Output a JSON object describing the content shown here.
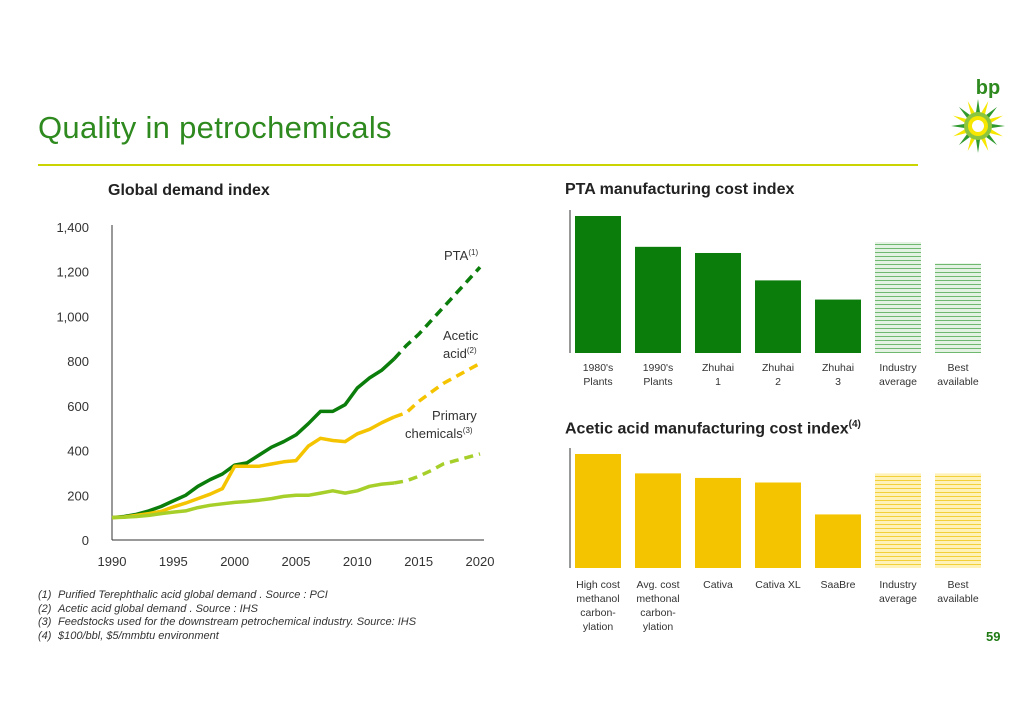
{
  "page": {
    "title": "Quality in petrochemicals",
    "page_number": "59",
    "logo_text": "bp"
  },
  "colors": {
    "green": "#0b7d0b",
    "yellow": "#f5c400",
    "light_green": "#7dbf7d",
    "yellow_green": "#a6cf2a",
    "title_green": "#2e8a1f",
    "rule": "#c9d400"
  },
  "chart_data": [
    {
      "type": "line",
      "title": "Global demand index",
      "x": [
        1990,
        1991,
        1992,
        1993,
        1994,
        1995,
        1996,
        1997,
        1998,
        1999,
        2000,
        2001,
        2002,
        2003,
        2004,
        2005,
        2006,
        2007,
        2008,
        2009,
        2010,
        2011,
        2012,
        2013,
        2014,
        2015,
        2016,
        2017,
        2018,
        2019,
        2020
      ],
      "actual_until": 2013,
      "ylim": [
        0,
        1400
      ],
      "yticks": [
        "0",
        "200",
        "400",
        "600",
        "800",
        "1,000",
        "1,200",
        "1,400"
      ],
      "xticks": [
        "1990",
        "1995",
        "2000",
        "2005",
        "2010",
        "2015",
        "2020"
      ],
      "series": [
        {
          "name": "PTA",
          "label": "PTA",
          "footnote": "(1)",
          "color": "#0b7d0b",
          "values": [
            100,
            105,
            115,
            130,
            150,
            175,
            200,
            240,
            270,
            295,
            335,
            345,
            380,
            415,
            440,
            470,
            520,
            575,
            575,
            605,
            680,
            725,
            760,
            810,
            870,
            920,
            980,
            1040,
            1100,
            1160,
            1220
          ]
        },
        {
          "name": "Acetic acid",
          "label": "Acetic",
          "label2": "acid",
          "footnote": "(2)",
          "color": "#f5c400",
          "values": [
            100,
            103,
            110,
            118,
            128,
            148,
            165,
            185,
            205,
            230,
            330,
            330,
            330,
            340,
            350,
            355,
            420,
            455,
            445,
            440,
            475,
            495,
            525,
            550,
            570,
            620,
            660,
            700,
            730,
            760,
            790
          ]
        },
        {
          "name": "Primary chemicals",
          "label": "Primary",
          "label2": "chemicals",
          "footnote": "(3)",
          "color": "#a6cf2a",
          "values": [
            100,
            102,
            105,
            110,
            118,
            125,
            130,
            145,
            155,
            162,
            168,
            172,
            178,
            185,
            195,
            200,
            200,
            210,
            220,
            210,
            220,
            240,
            250,
            255,
            265,
            285,
            310,
            340,
            355,
            370,
            385
          ]
        }
      ]
    },
    {
      "type": "bar",
      "title": "PTA manufacturing cost index",
      "categories": [
        [
          "1980's",
          "Plants"
        ],
        [
          "1990's",
          "Plants"
        ],
        [
          "Zhuhai",
          "1"
        ],
        [
          "Zhuhai",
          "2"
        ],
        [
          "Zhuhai",
          "3"
        ],
        [
          "Industry",
          "average"
        ],
        [
          "Best",
          "available"
        ]
      ],
      "values": [
        1.0,
        0.775,
        0.73,
        0.53,
        0.39,
        0.81,
        0.655
      ],
      "styles": [
        "solid",
        "solid",
        "solid",
        "solid",
        "solid",
        "hatched",
        "hatched"
      ],
      "color": "#0b7d0b",
      "ylim": [
        0,
        1.0
      ]
    },
    {
      "type": "bar",
      "title": "Acetic acid manufacturing cost index",
      "title_sup": "(4)",
      "categories": [
        [
          "High cost",
          "methanol",
          "carbon-",
          "ylation"
        ],
        [
          "Avg. cost",
          "methonal",
          "carbon-",
          "ylation"
        ],
        [
          "Cativa"
        ],
        [
          "Cativa XL"
        ],
        [
          "SaaBre"
        ],
        [
          "Industry",
          "average"
        ],
        [
          "Best",
          "available"
        ]
      ],
      "values": [
        1.0,
        0.83,
        0.79,
        0.75,
        0.47,
        0.83,
        0.83
      ],
      "styles": [
        "solid",
        "solid",
        "solid",
        "solid",
        "solid",
        "hatched",
        "hatched"
      ],
      "color": "#f5c400",
      "ylim": [
        0,
        1.0
      ]
    }
  ],
  "footnotes": [
    {
      "num": "(1)",
      "text": "Purified Terephthalic acid global demand . Source : PCI"
    },
    {
      "num": "(2)",
      "text": "Acetic acid global demand . Source : IHS"
    },
    {
      "num": "(3)",
      "text": "Feedstocks used for the downstream petrochemical industry. Source:  IHS"
    },
    {
      "num": "(4)",
      "text": "$100/bbl, $5/mmbtu environment"
    }
  ]
}
